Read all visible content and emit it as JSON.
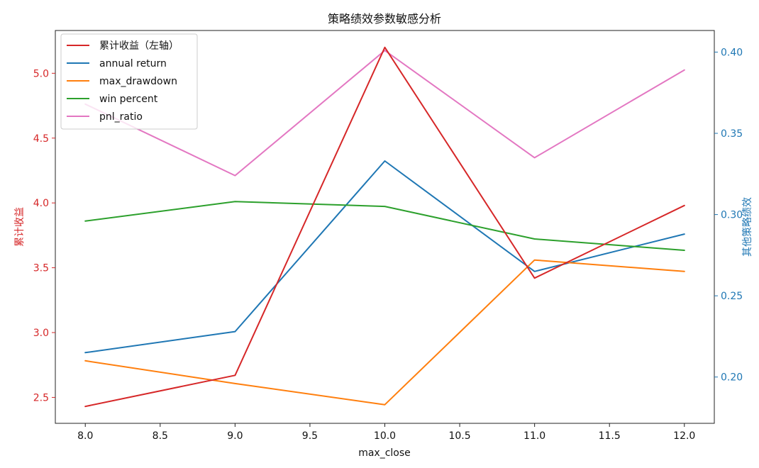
{
  "chart_data": {
    "type": "line",
    "title": "策略绩效参数敏感分析",
    "xlabel": "max_close",
    "ylabel_left": "累计收益",
    "ylabel_right": "其他策略绩效",
    "x": [
      8.0,
      9.0,
      10.0,
      11.0,
      12.0
    ],
    "xlim": [
      7.8,
      12.2
    ],
    "xticks": [
      8.0,
      8.5,
      9.0,
      9.5,
      10.0,
      10.5,
      11.0,
      11.5,
      12.0
    ],
    "xtick_labels": [
      "8.0",
      "8.5",
      "9.0",
      "9.5",
      "10.0",
      "10.5",
      "11.0",
      "11.5",
      "12.0"
    ],
    "ylim_left": [
      2.3,
      5.33
    ],
    "yticks_left": [
      2.5,
      3.0,
      3.5,
      4.0,
      4.5,
      5.0
    ],
    "ytick_labels_left": [
      "2.5",
      "3.0",
      "3.5",
      "4.0",
      "4.5",
      "5.0"
    ],
    "ylim_right": [
      0.1715,
      0.4133
    ],
    "yticks_right": [
      0.2,
      0.25,
      0.3,
      0.35,
      0.4
    ],
    "ytick_labels_right": [
      "0.20",
      "0.25",
      "0.30",
      "0.35",
      "0.40"
    ],
    "left_axis_color": "#d62728",
    "right_axis_color": "#1f77b4",
    "legend_position": "top-left",
    "grid": false,
    "series": [
      {
        "name": "累计收益（左轴）",
        "axis": "left",
        "color": "#d62728",
        "values": [
          2.43,
          2.67,
          5.2,
          3.42,
          3.98
        ]
      },
      {
        "name": "annual return",
        "axis": "right",
        "color": "#1f77b4",
        "values": [
          0.215,
          0.228,
          0.333,
          0.265,
          0.288
        ]
      },
      {
        "name": "max_drawdown",
        "axis": "right",
        "color": "#ff7f0e",
        "values": [
          0.21,
          0.196,
          0.183,
          0.272,
          0.265
        ]
      },
      {
        "name": "win percent",
        "axis": "right",
        "color": "#2ca02c",
        "values": [
          0.296,
          0.308,
          0.305,
          0.285,
          0.278
        ]
      },
      {
        "name": "pnl_ratio",
        "axis": "right",
        "color": "#e377c2",
        "values": [
          0.368,
          0.324,
          0.401,
          0.335,
          0.389
        ]
      }
    ]
  }
}
